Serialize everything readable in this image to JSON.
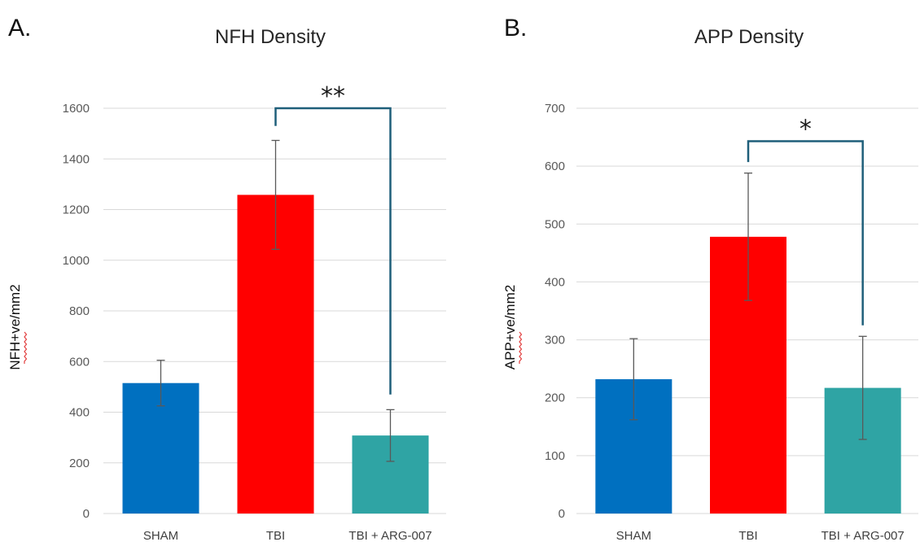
{
  "chart_data": [
    {
      "type": "bar",
      "panel_label": "A.",
      "title": "NFH Density",
      "ylabel": "NFH+ve/mm2",
      "xlabel": "",
      "categories": [
        "SHAM",
        "TBI",
        "TBI + ARG-007"
      ],
      "values": [
        515,
        1258,
        308
      ],
      "errors": [
        90,
        215,
        102
      ],
      "colors": [
        "#0070c0",
        "#ff0000",
        "#2fa4a4"
      ],
      "ylim": [
        0,
        1600
      ],
      "yticks": [
        0,
        200,
        400,
        600,
        800,
        1000,
        1200,
        1400,
        1600
      ],
      "grid": true,
      "legend": "none",
      "significance": {
        "from": 1,
        "to": 2,
        "label": "**",
        "bracket_value": 1600,
        "left_end": 1530,
        "right_end": 470
      }
    },
    {
      "type": "bar",
      "panel_label": "B.",
      "title": "APP Density",
      "ylabel": "APP+ve/mm2",
      "xlabel": "",
      "categories": [
        "SHAM",
        "TBI",
        "TBI + ARG-007"
      ],
      "values": [
        232,
        478,
        217
      ],
      "errors": [
        70,
        110,
        89
      ],
      "colors": [
        "#0070c0",
        "#ff0000",
        "#2fa4a4"
      ],
      "ylim": [
        0,
        700
      ],
      "yticks": [
        0,
        100,
        200,
        300,
        400,
        500,
        600,
        700
      ],
      "grid": true,
      "legend": "none",
      "significance": {
        "from": 1,
        "to": 2,
        "label": "*",
        "bracket_value": 643,
        "left_end": 607,
        "right_end": 325
      }
    }
  ]
}
